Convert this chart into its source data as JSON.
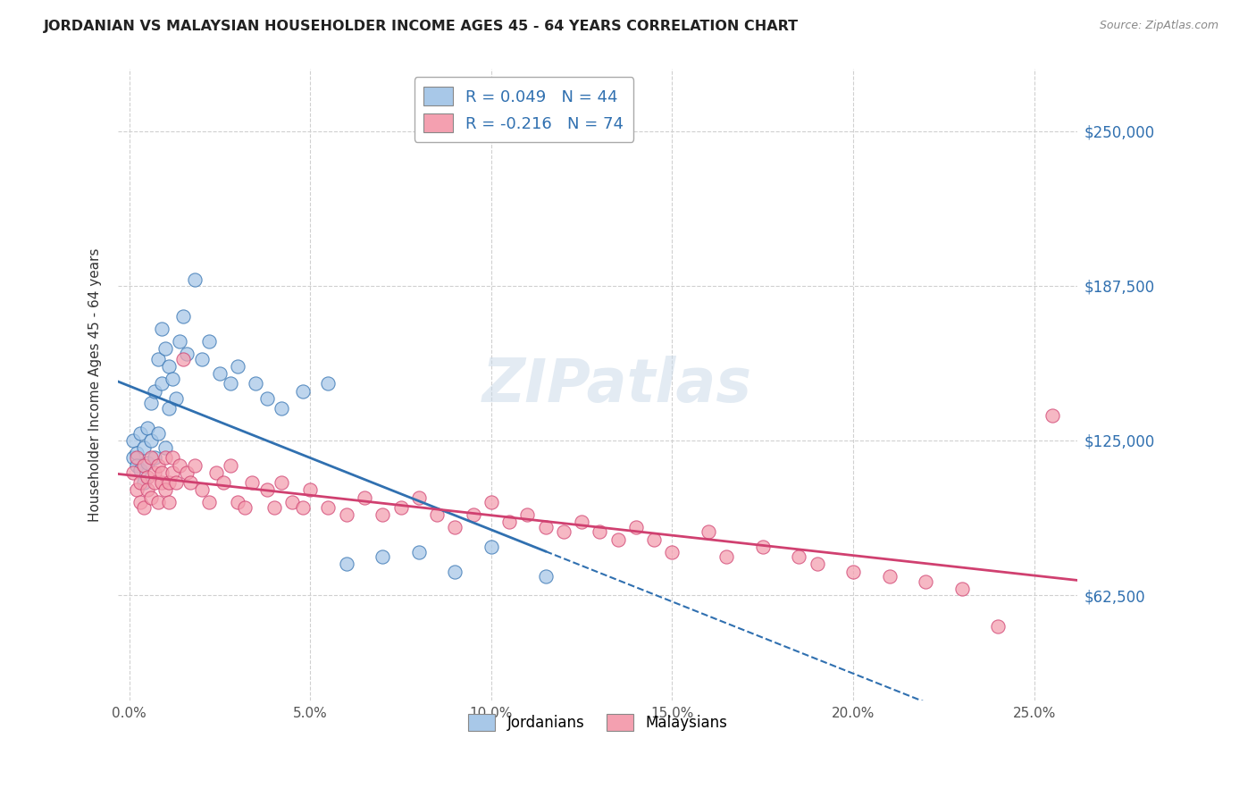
{
  "title": "JORDANIAN VS MALAYSIAN HOUSEHOLDER INCOME AGES 45 - 64 YEARS CORRELATION CHART",
  "source": "Source: ZipAtlas.com",
  "ylabel": "Householder Income Ages 45 - 64 years",
  "xlabel_ticks": [
    "0.0%",
    "5.0%",
    "10.0%",
    "15.0%",
    "20.0%",
    "25.0%"
  ],
  "xlabel_values": [
    0.0,
    0.05,
    0.1,
    0.15,
    0.2,
    0.25
  ],
  "ylabel_ticks": [
    "$62,500",
    "$125,000",
    "$187,500",
    "$250,000"
  ],
  "ylabel_values": [
    62500,
    125000,
    187500,
    250000
  ],
  "ylim": [
    20000,
    275000
  ],
  "xlim": [
    -0.003,
    0.262
  ],
  "legend_jordan": "R = 0.049   N = 44",
  "legend_malaysia": "R = -0.216   N = 74",
  "jordan_color": "#a8c8e8",
  "malaysia_color": "#f4a0b0",
  "jordan_line_color": "#3070b0",
  "malaysia_line_color": "#d04070",
  "background_color": "#ffffff",
  "grid_color": "#d0d0d0",
  "jordanians_x": [
    0.001,
    0.001,
    0.002,
    0.002,
    0.003,
    0.003,
    0.004,
    0.004,
    0.005,
    0.005,
    0.006,
    0.006,
    0.007,
    0.007,
    0.008,
    0.008,
    0.009,
    0.009,
    0.01,
    0.01,
    0.011,
    0.011,
    0.012,
    0.013,
    0.014,
    0.015,
    0.016,
    0.018,
    0.02,
    0.022,
    0.025,
    0.028,
    0.03,
    0.035,
    0.038,
    0.042,
    0.048,
    0.055,
    0.06,
    0.07,
    0.08,
    0.09,
    0.1,
    0.115
  ],
  "jordanians_y": [
    118000,
    125000,
    120000,
    115000,
    128000,
    113000,
    108000,
    122000,
    130000,
    116000,
    140000,
    125000,
    145000,
    118000,
    158000,
    128000,
    170000,
    148000,
    162000,
    122000,
    155000,
    138000,
    150000,
    142000,
    165000,
    175000,
    160000,
    190000,
    158000,
    165000,
    152000,
    148000,
    155000,
    148000,
    142000,
    138000,
    145000,
    148000,
    75000,
    78000,
    80000,
    72000,
    82000,
    70000
  ],
  "malaysians_x": [
    0.001,
    0.002,
    0.002,
    0.003,
    0.003,
    0.004,
    0.004,
    0.005,
    0.005,
    0.006,
    0.006,
    0.007,
    0.007,
    0.008,
    0.008,
    0.009,
    0.009,
    0.01,
    0.01,
    0.011,
    0.011,
    0.012,
    0.012,
    0.013,
    0.014,
    0.015,
    0.016,
    0.017,
    0.018,
    0.02,
    0.022,
    0.024,
    0.026,
    0.028,
    0.03,
    0.032,
    0.034,
    0.038,
    0.04,
    0.042,
    0.045,
    0.048,
    0.05,
    0.055,
    0.06,
    0.065,
    0.07,
    0.075,
    0.08,
    0.085,
    0.09,
    0.095,
    0.1,
    0.105,
    0.11,
    0.115,
    0.12,
    0.125,
    0.13,
    0.135,
    0.14,
    0.145,
    0.15,
    0.16,
    0.165,
    0.175,
    0.185,
    0.19,
    0.2,
    0.21,
    0.22,
    0.23,
    0.24,
    0.255
  ],
  "malaysians_y": [
    112000,
    105000,
    118000,
    108000,
    100000,
    115000,
    98000,
    110000,
    105000,
    118000,
    102000,
    112000,
    108000,
    115000,
    100000,
    108000,
    112000,
    105000,
    118000,
    108000,
    100000,
    112000,
    118000,
    108000,
    115000,
    158000,
    112000,
    108000,
    115000,
    105000,
    100000,
    112000,
    108000,
    115000,
    100000,
    98000,
    108000,
    105000,
    98000,
    108000,
    100000,
    98000,
    105000,
    98000,
    95000,
    102000,
    95000,
    98000,
    102000,
    95000,
    90000,
    95000,
    100000,
    92000,
    95000,
    90000,
    88000,
    92000,
    88000,
    85000,
    90000,
    85000,
    80000,
    88000,
    78000,
    82000,
    78000,
    75000,
    72000,
    70000,
    68000,
    65000,
    50000,
    135000
  ]
}
